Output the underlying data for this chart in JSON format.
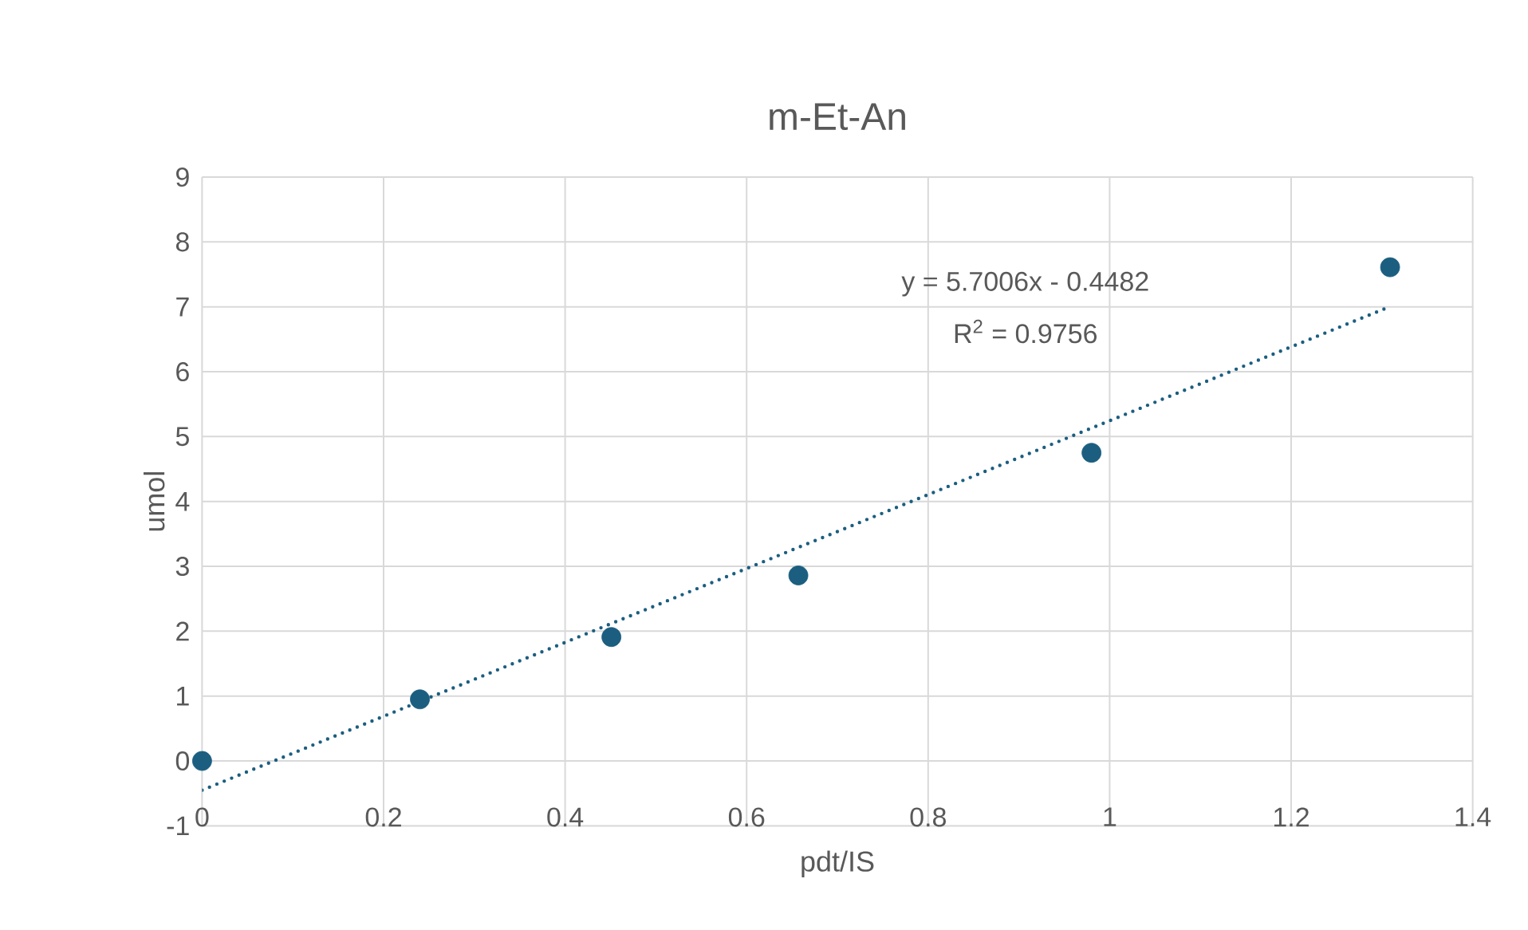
{
  "chart_data": {
    "type": "scatter",
    "title": "m-Et-An",
    "xlabel": "pdt/IS",
    "ylabel": "umol",
    "xlim": [
      0,
      1.4
    ],
    "ylim": [
      -1,
      9
    ],
    "xticks": [
      0,
      0.2,
      0.4,
      0.6,
      0.8,
      1,
      1.2,
      1.4
    ],
    "yticks": [
      -1,
      0,
      1,
      2,
      3,
      4,
      5,
      6,
      7,
      8,
      9
    ],
    "grid": true,
    "annotations": [
      "y = 5.7006x - 0.4482",
      "R$^{2}$ = 0.9756"
    ],
    "series": [
      {
        "color": "#1b5e80",
        "x": [
          0,
          0.24,
          0.451,
          0.657,
          0.98,
          1.309
        ],
        "values": [
          0,
          0.95,
          1.91,
          2.86,
          4.75,
          7.61
        ]
      },
      {
        "type": "line",
        "color": "#1b5e80",
        "line_style": "dotted",
        "x": [
          0,
          1.31
        ],
        "values": [
          -0.45,
          7.01
        ]
      }
    ]
  }
}
